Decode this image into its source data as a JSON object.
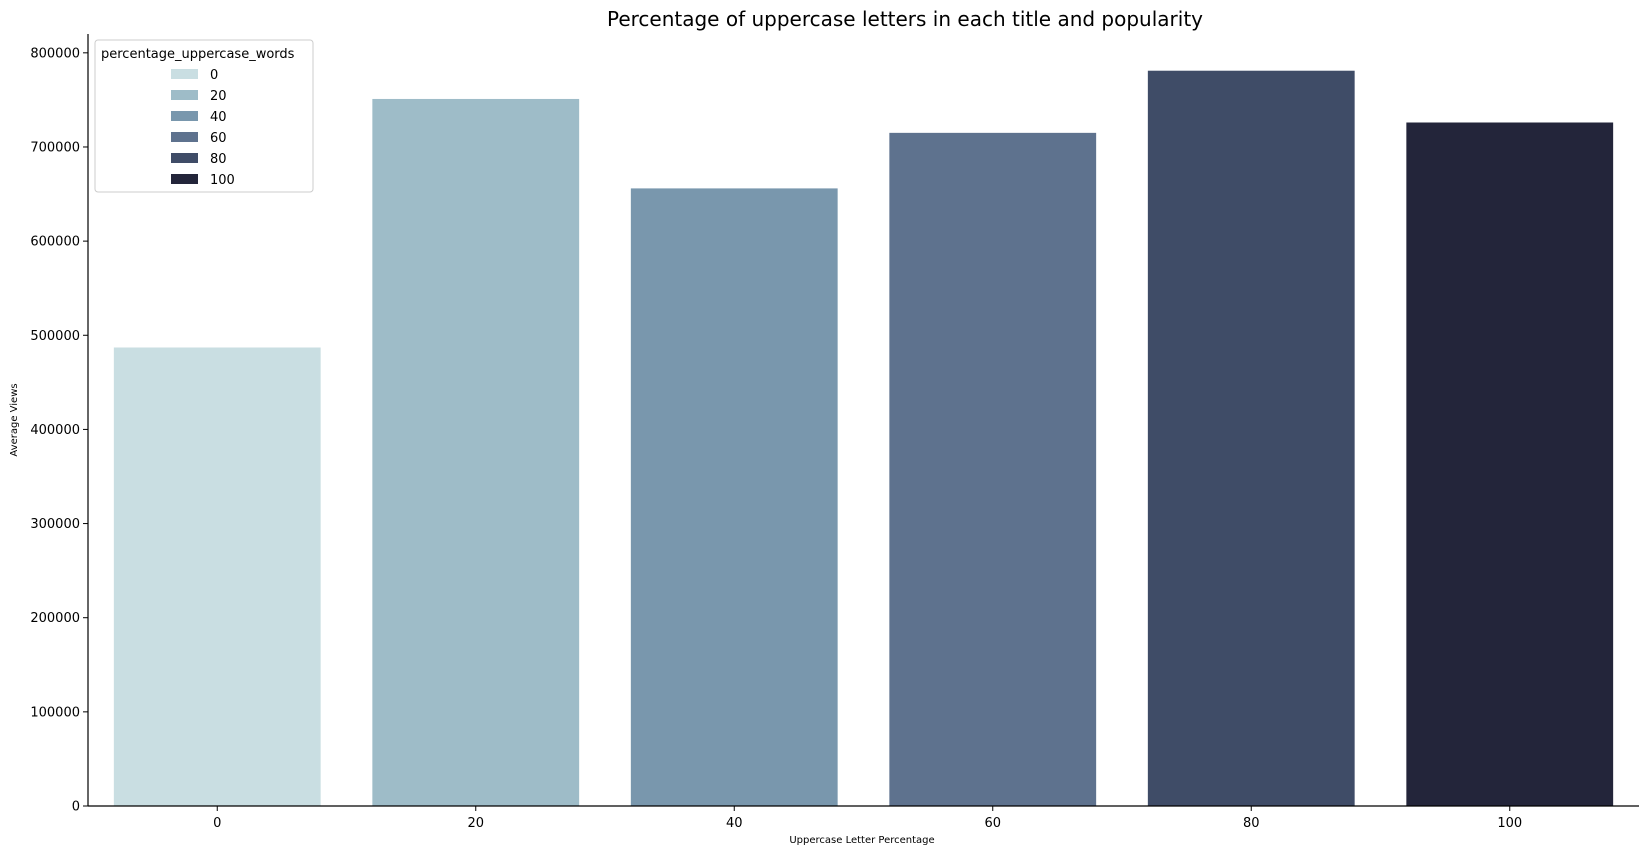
{
  "chart_data": {
    "type": "bar",
    "title": "Percentage of uppercase letters in each title and popularity",
    "xlabel": "Uppercase Letter Percentage",
    "ylabel": "Average Views",
    "categories": [
      "0",
      "20",
      "40",
      "60",
      "80",
      "100"
    ],
    "values": [
      487000,
      751000,
      656000,
      715000,
      781000,
      726000
    ],
    "colors": [
      "#c9dee2",
      "#9ebcc8",
      "#7997ad",
      "#5e728e",
      "#3f4c67",
      "#23253a"
    ],
    "ylim": [
      0,
      820000
    ],
    "yticks": [
      0,
      100000,
      200000,
      300000,
      400000,
      500000,
      600000,
      700000,
      800000
    ],
    "grid": false,
    "legend": {
      "title": "percentage_uppercase_words",
      "placement": "top-left",
      "entries": [
        "0",
        "20",
        "40",
        "60",
        "80",
        "100"
      ]
    }
  }
}
